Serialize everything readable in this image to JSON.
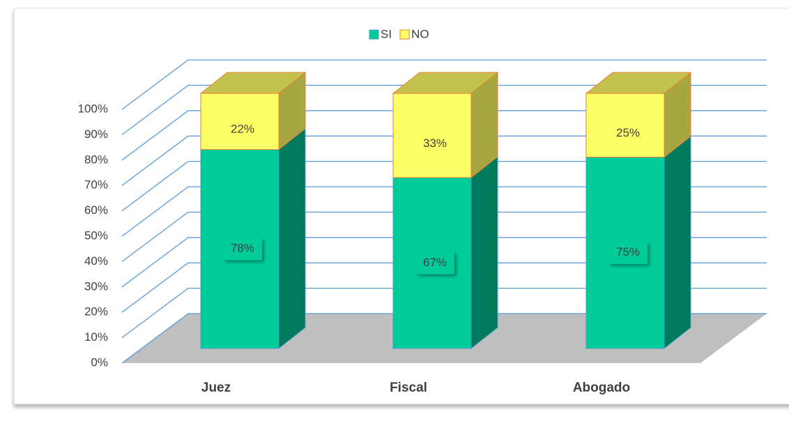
{
  "chart_data": {
    "type": "bar3d_stacked",
    "categories": [
      "Juez",
      "Fiscal",
      "Abogado"
    ],
    "series": [
      {
        "name": "SI",
        "color": "#00cc99",
        "values": [
          78,
          67,
          75
        ],
        "value_labels": [
          "78%",
          "67%",
          "75%"
        ]
      },
      {
        "name": "NO",
        "color": "#ffff66",
        "values": [
          22,
          33,
          25
        ],
        "value_labels": [
          "22%",
          "33%",
          "25%"
        ]
      }
    ],
    "ylim": [
      0,
      100
    ],
    "yticks": [
      {
        "value": 0,
        "label": "0%"
      },
      {
        "value": 10,
        "label": "10%"
      },
      {
        "value": 20,
        "label": "20%"
      },
      {
        "value": 30,
        "label": "30%"
      },
      {
        "value": 40,
        "label": "40%"
      },
      {
        "value": 50,
        "label": "50%"
      },
      {
        "value": 60,
        "label": "60%"
      },
      {
        "value": 70,
        "label": "70%"
      },
      {
        "value": 80,
        "label": "80%"
      },
      {
        "value": 90,
        "label": "90%"
      },
      {
        "value": 100,
        "label": "100%"
      }
    ],
    "grid": true,
    "legend": "top"
  }
}
